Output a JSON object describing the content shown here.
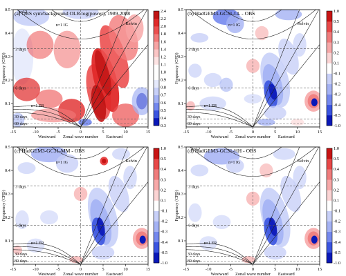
{
  "figure": {
    "ylabel": "Frequency (CPD)",
    "xlabel": "Zonal wave number",
    "westward": "Westward",
    "eastward": "Eastward"
  },
  "chart_data": [
    {
      "type": "heatmap",
      "title": "(a) OBS sym/background OLR log(power), 1989-2008",
      "xlim": [
        -15,
        15
      ],
      "ylim": [
        0,
        0.5
      ],
      "xticks": [
        -15,
        -10,
        -5,
        0,
        5,
        10,
        15
      ],
      "yticks": [
        0.1,
        0.2,
        0.3,
        0.4,
        0.5
      ],
      "colorbar": {
        "ticks": [
          0.3,
          0.4,
          0.5,
          0.6,
          0.7,
          0.8,
          0.9,
          1.0,
          1.1,
          1.2,
          1.4,
          1.6,
          1.8,
          2.0,
          2.2,
          2.4
        ],
        "colors": [
          "#0a18b8",
          "#3a54e0",
          "#7488ee",
          "#a4b2f4",
          "#c8d0f8",
          "#e6eafc",
          "#ffffff",
          "#ffffff",
          "#fde4e4",
          "#fbc6c6",
          "#f7a4a4",
          "#f27a7a",
          "#ec5050",
          "#e02a2a",
          "#c01414"
        ]
      },
      "annotations": [
        "h=12",
        "n=1 IG",
        "Kelvin",
        "n=1 ER",
        "3 days",
        "6 days",
        "30 days",
        "80 days"
      ],
      "reference_lines_cpd": [
        0.3333,
        0.1667,
        0.0333,
        0.0125
      ]
    },
    {
      "type": "heatmap",
      "title": "(b) HadGEM3-GC31-LL - OBS",
      "xlim": [
        -15,
        15
      ],
      "ylim": [
        0,
        0.5
      ],
      "xticks": [
        -15,
        -10,
        -5,
        0,
        5,
        10,
        15
      ],
      "yticks": [
        0.1,
        0.2,
        0.3,
        0.4,
        0.5
      ],
      "colorbar": {
        "ticks": [
          -1.0,
          -0.5,
          -0.4,
          -0.3,
          -0.2,
          -0.1,
          0.1,
          0.2,
          0.3,
          0.4,
          0.5,
          1.0
        ],
        "colors": [
          "#0a18b8",
          "#3a54e0",
          "#7488ee",
          "#a4b2f4",
          "#c8d0f8",
          "#ffffff",
          "#fbd4d4",
          "#f7a8a8",
          "#f07c7c",
          "#e84848",
          "#c81414"
        ]
      },
      "annotations": [
        "n=1 IG",
        "Kelvin",
        "n=1 ER",
        "3 days",
        "6 days",
        "30 days",
        "80 days"
      ]
    },
    {
      "type": "heatmap",
      "title": "(c) HadGEM3-GC31-MM - OBS",
      "xlim": [
        -15,
        15
      ],
      "ylim": [
        0,
        0.5
      ],
      "xticks": [
        -15,
        -10,
        -5,
        0,
        5,
        10,
        15
      ],
      "yticks": [
        0.1,
        0.2,
        0.3,
        0.4,
        0.5
      ],
      "colorbar": {
        "ticks": [
          -1.0,
          -0.5,
          -0.4,
          -0.3,
          -0.2,
          -0.1,
          0.1,
          0.2,
          0.3,
          0.4,
          0.5,
          1.0
        ],
        "colors": [
          "#0a18b8",
          "#3a54e0",
          "#7488ee",
          "#a4b2f4",
          "#c8d0f8",
          "#ffffff",
          "#fbd4d4",
          "#f7a8a8",
          "#f07c7c",
          "#e84848",
          "#c81414"
        ]
      },
      "annotations": [
        "h=12",
        "n=1 IG",
        "Kelvin",
        "n=1 ER",
        "3 days",
        "6 days",
        "30 days",
        "80 days"
      ]
    },
    {
      "type": "heatmap",
      "title": "(d) HadGEM3-GC31-HH - OBS",
      "xlim": [
        -15,
        15
      ],
      "ylim": [
        0,
        0.5
      ],
      "xticks": [
        -15,
        -10,
        -5,
        0,
        5,
        10,
        15
      ],
      "yticks": [
        0.1,
        0.2,
        0.3,
        0.4,
        0.5
      ],
      "colorbar": {
        "ticks": [
          -1.0,
          -0.5,
          -0.4,
          -0.3,
          -0.2,
          -0.1,
          0.1,
          0.2,
          0.3,
          0.4,
          0.5,
          1.0
        ],
        "colors": [
          "#0a18b8",
          "#3a54e0",
          "#7488ee",
          "#a4b2f4",
          "#c8d0f8",
          "#ffffff",
          "#fbd4d4",
          "#f7a8a8",
          "#f07c7c",
          "#e84848",
          "#c81414"
        ]
      },
      "annotations": [
        "h=12",
        "n=1 IG",
        "Kelvin",
        "n=1 ER",
        "3 days",
        "6 days",
        "30 days",
        "80 days"
      ]
    }
  ]
}
